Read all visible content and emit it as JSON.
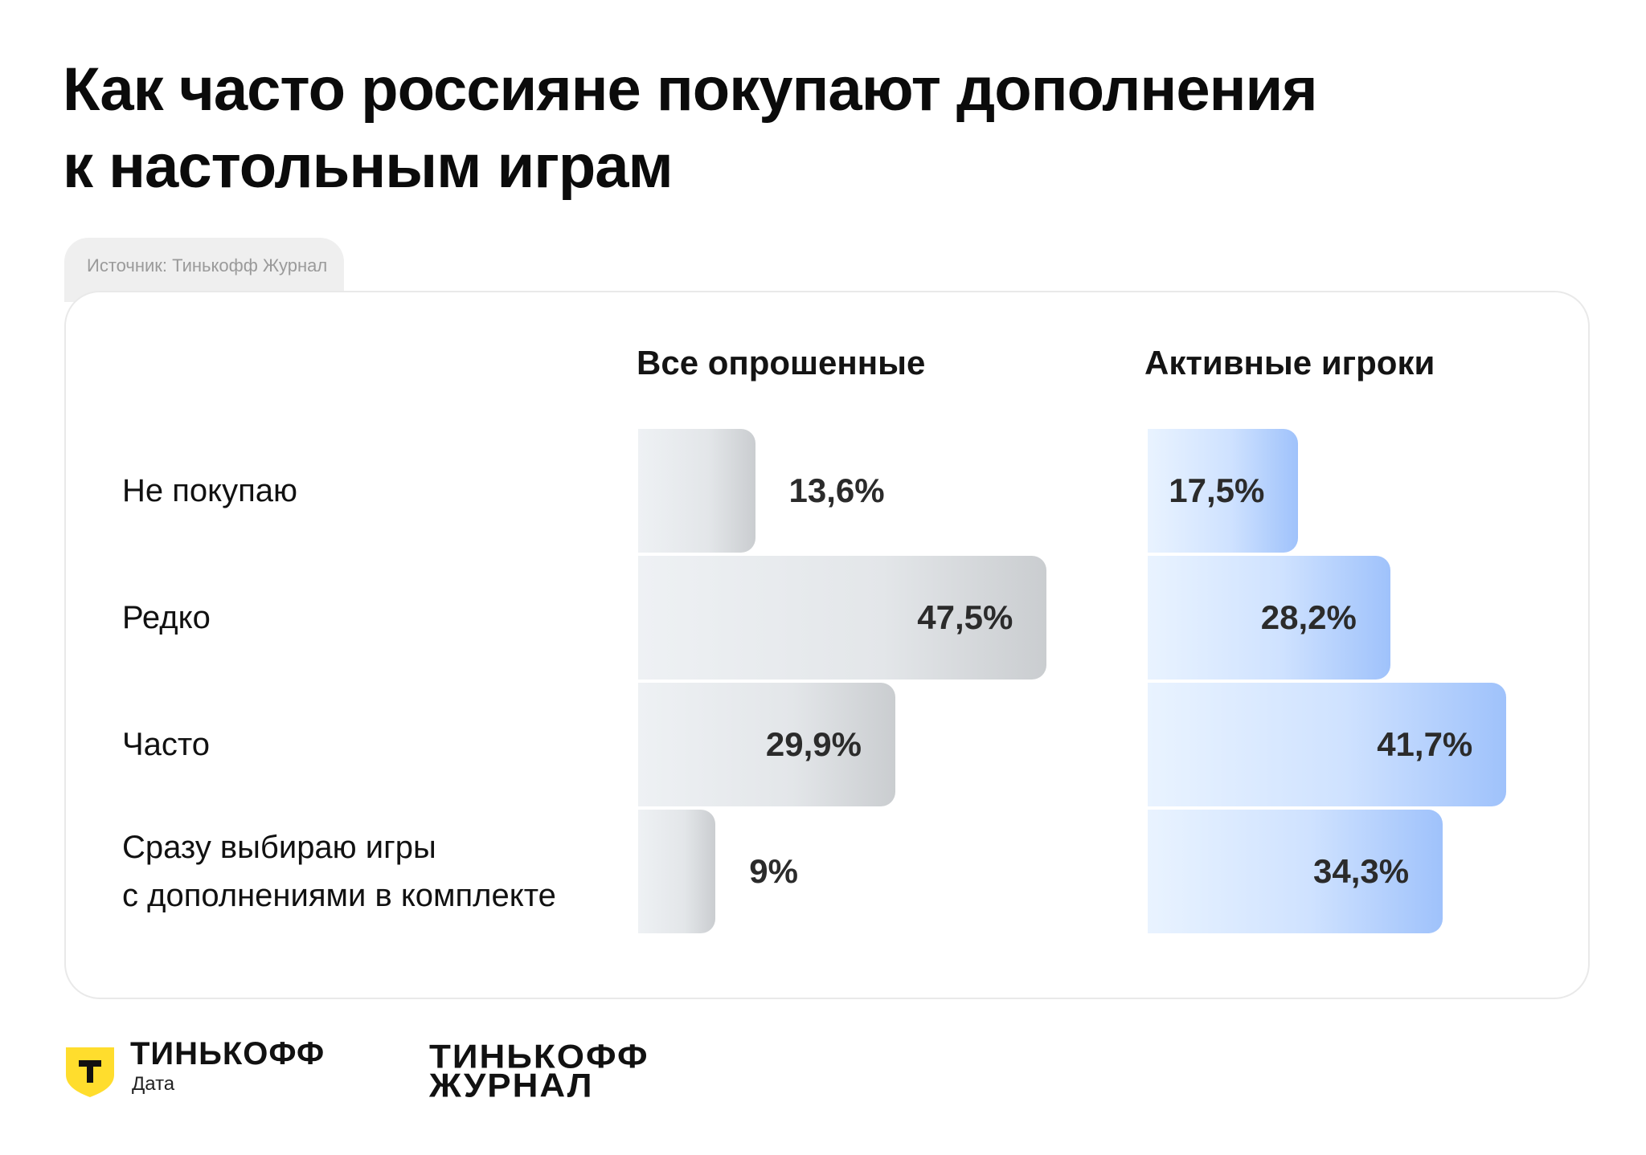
{
  "header": {
    "title_line1": "Как часто россияне покупают дополнения",
    "title_line2": "к настольным играм"
  },
  "source": "Источник: Тинькофф Журнал",
  "chart_data": {
    "type": "bar",
    "orientation": "horizontal",
    "categories": [
      "Не покупаю",
      "Редко",
      "Часто",
      "Сразу выбираю игры с дополнениями в комплекте"
    ],
    "category_lines": [
      [
        "Не покупаю"
      ],
      [
        "Редко"
      ],
      [
        "Часто"
      ],
      [
        "Сразу выбираю игры",
        "с дополнениями в комплекте"
      ]
    ],
    "series": [
      {
        "name": "Все опрошенные",
        "values": [
          13.6,
          47.5,
          29.9,
          9
        ],
        "labels": [
          "13,6%",
          "47,5%",
          "29,9%",
          "9%"
        ],
        "color": "#cacdd0"
      },
      {
        "name": "Активные игроки",
        "values": [
          17.5,
          28.2,
          41.7,
          34.3
        ],
        "labels": [
          "17,5%",
          "28,2%",
          "41,7%",
          "34,3%"
        ],
        "color": "#9fc2fb"
      }
    ],
    "unit": "%"
  },
  "footer": {
    "logo1_icon": "tinkoff-shield-icon",
    "logo1_name": "ТИНЬКОФФ",
    "logo1_sub": "Дата",
    "logo2_line1": "ТИНЬКОФФ",
    "logo2_line2": "ЖУРНАЛ",
    "brand_yellow": "#ffdd2d"
  }
}
